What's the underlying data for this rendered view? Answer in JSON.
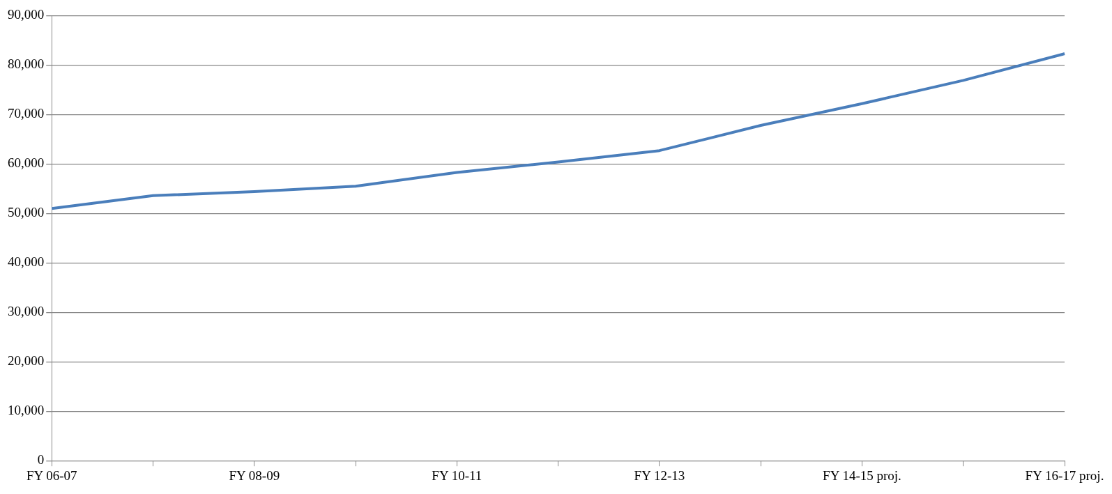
{
  "chart_data": {
    "type": "line",
    "categories": [
      "FY 06-07",
      null,
      "FY 08-09",
      null,
      "FY 10-11",
      null,
      "FY 12-13",
      null,
      "FY 14-15 proj.",
      null,
      "FY 16-17 proj."
    ],
    "series": [
      {
        "color": "#4a7ebb",
        "values": [
          51000,
          53600,
          54400,
          55500,
          58300,
          60400,
          62700,
          67800,
          72200,
          76900,
          82300
        ]
      }
    ],
    "ylim": [
      0,
      90000
    ],
    "yticks": [
      0,
      {
        "value": 10000,
        "label": "10,000"
      },
      {
        "value": 20000,
        "label": "20,000"
      },
      {
        "value": 30000,
        "label": "30,000"
      },
      {
        "value": 40000,
        "label": "40,000"
      },
      {
        "value": 50000,
        "label": "50,000"
      },
      {
        "value": 60000,
        "label": "60,000"
      },
      {
        "value": 70000,
        "label": "70,000"
      },
      {
        "value": 80000,
        "label": "80,000"
      },
      {
        "value": 90000,
        "label": "90,000"
      }
    ],
    "grid": "y",
    "legend": false,
    "marker": "none",
    "line_style": "solid"
  }
}
